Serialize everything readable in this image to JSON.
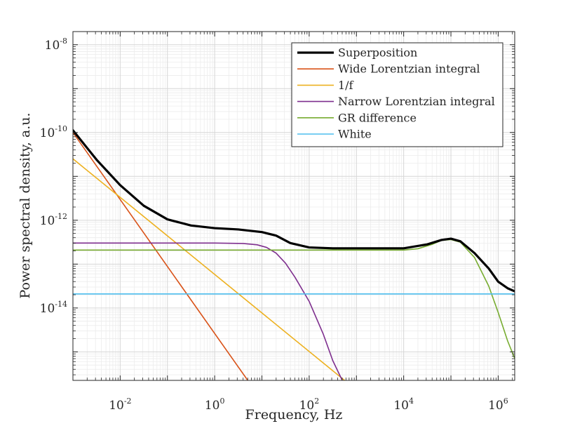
{
  "chart_data": {
    "type": "line",
    "xscale": "log",
    "yscale": "log",
    "xlabel": "Frequency, Hz",
    "ylabel": "Power spectral density, a.u.",
    "xlim_log10": [
      -3,
      6.35
    ],
    "ylim_log10": [
      -15.65,
      -7.7
    ],
    "grid": true,
    "minor_grid": true,
    "legend_position": "top-right",
    "x_ticks": [
      {
        "base": "10",
        "exp": "-2",
        "log10": -2
      },
      {
        "base": "10",
        "exp": "0",
        "log10": 0
      },
      {
        "base": "10",
        "exp": "2",
        "log10": 2
      },
      {
        "base": "10",
        "exp": "4",
        "log10": 4
      },
      {
        "base": "10",
        "exp": "6",
        "log10": 6
      }
    ],
    "y_ticks": [
      {
        "base": "10",
        "exp": "-8",
        "log10": -8
      },
      {
        "base": "10",
        "exp": "-10",
        "log10": -10
      },
      {
        "base": "10",
        "exp": "-12",
        "log10": -12
      },
      {
        "base": "10",
        "exp": "-14",
        "log10": -14
      }
    ],
    "series": [
      {
        "name": "Superposition",
        "color": "#000000",
        "width": 3.2,
        "log10_x": [
          -3,
          -2.5,
          -2,
          -1.5,
          -1,
          -0.5,
          0,
          0.5,
          1,
          1.3,
          1.6,
          2,
          2.5,
          3,
          3.5,
          4,
          4.5,
          4.8,
          5,
          5.2,
          5.5,
          5.8,
          6,
          6.2,
          6.35
        ],
        "log10_y": [
          -9.95,
          -10.62,
          -11.2,
          -11.67,
          -11.98,
          -12.12,
          -12.18,
          -12.21,
          -12.27,
          -12.35,
          -12.52,
          -12.62,
          -12.64,
          -12.64,
          -12.64,
          -12.64,
          -12.55,
          -12.45,
          -12.42,
          -12.48,
          -12.75,
          -13.1,
          -13.4,
          -13.55,
          -13.62
        ]
      },
      {
        "name": "Wide Lorentzian integral",
        "color": "#D95319",
        "width": 1.6,
        "log10_x": [
          -3,
          0.7
        ],
        "log10_y": [
          -10.0,
          -15.65
        ]
      },
      {
        "name": "1/f",
        "color": "#EDB120",
        "width": 1.6,
        "log10_x": [
          -3,
          2.75
        ],
        "log10_y": [
          -10.6,
          -15.65
        ]
      },
      {
        "name": "Narrow Lorentzian integral",
        "color": "#7E2F8E",
        "width": 1.6,
        "log10_x": [
          -3,
          0,
          0.6,
          0.9,
          1.1,
          1.3,
          1.5,
          1.7,
          2.0,
          2.3,
          2.5,
          2.7
        ],
        "log10_y": [
          -12.52,
          -12.52,
          -12.53,
          -12.56,
          -12.62,
          -12.75,
          -12.98,
          -13.3,
          -13.85,
          -14.6,
          -15.2,
          -15.65
        ]
      },
      {
        "name": "GR difference",
        "color": "#77AC30",
        "width": 1.6,
        "log10_x": [
          -3,
          3.5,
          4,
          4.3,
          4.6,
          4.8,
          5,
          5.2,
          5.5,
          5.8,
          6,
          6.2,
          6.35
        ],
        "log10_y": [
          -12.68,
          -12.68,
          -12.68,
          -12.65,
          -12.55,
          -12.46,
          -12.44,
          -12.5,
          -12.85,
          -13.5,
          -14.1,
          -14.75,
          -15.15
        ]
      },
      {
        "name": "White",
        "color": "#4DBEEE",
        "width": 1.6,
        "log10_x": [
          -3,
          6.35
        ],
        "log10_y": [
          -13.68,
          -13.68
        ]
      }
    ]
  }
}
